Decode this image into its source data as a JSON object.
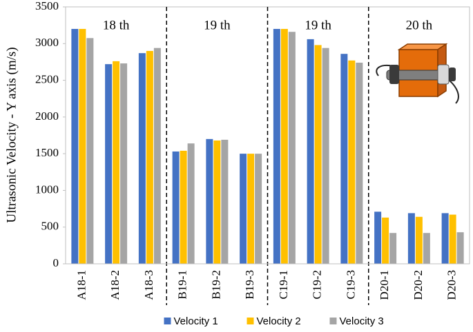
{
  "chart_data": {
    "type": "bar",
    "y_label": "Ultrasonic Velocity  -  Y axis (m/s)",
    "categories": [
      "A18-1",
      "A18-2",
      "A18-3",
      "B19-1",
      "B19-2",
      "B19-3",
      "C19-1",
      "C19-2",
      "C19-3",
      "D20-1",
      "D20-2",
      "D20-3"
    ],
    "annotations": [
      "18 th",
      "19 th",
      "19 th",
      "20 th"
    ],
    "series": [
      {
        "name": "Velocity 1",
        "color": "#4472c4",
        "values": [
          3200,
          2720,
          2870,
          1530,
          1700,
          1500,
          3200,
          3060,
          2860,
          710,
          690,
          690
        ]
      },
      {
        "name": "Velocity 2",
        "color": "#ffc000",
        "values": [
          3200,
          2760,
          2900,
          1540,
          1680,
          1500,
          3200,
          2980,
          2770,
          630,
          640,
          670
        ]
      },
      {
        "name": "Velocity 3",
        "color": "#a5a5a5",
        "values": [
          3075,
          2730,
          2940,
          1640,
          1690,
          1500,
          3160,
          2940,
          2740,
          420,
          420,
          430
        ]
      }
    ],
    "ylim": [
      0,
      3500
    ],
    "yticks": [
      0,
      500,
      1000,
      1500,
      2000,
      2500,
      3000,
      3500
    ],
    "grid": false,
    "legend": "bottom"
  }
}
